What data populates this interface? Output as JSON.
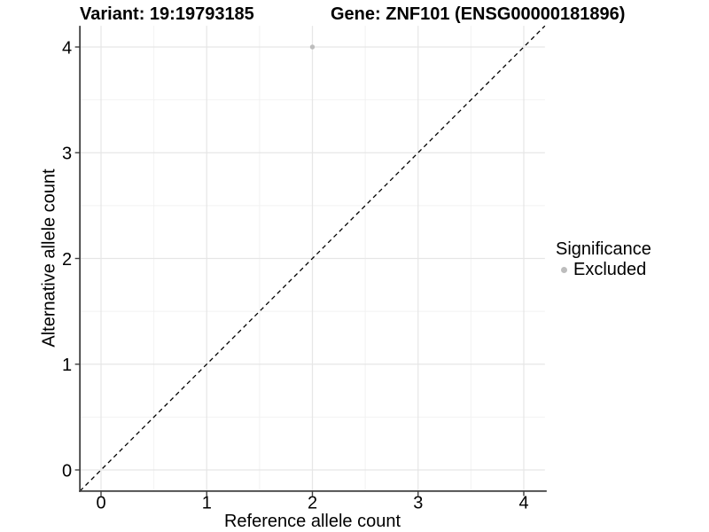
{
  "header": {
    "title_left": "Variant: 19:19793185",
    "title_right": "Gene: ZNF101 (ENSG00000181896)"
  },
  "chart_data": {
    "type": "scatter",
    "xlabel": "Reference allele count",
    "ylabel": "Alternative allele count",
    "xlim": [
      -0.2,
      4.2
    ],
    "ylim": [
      -0.2,
      4.2
    ],
    "xticks": [
      0,
      1,
      2,
      3,
      4
    ],
    "yticks": [
      0,
      1,
      2,
      3,
      4
    ],
    "minor_xticks": [
      0.5,
      1.5,
      2.5,
      3.5
    ],
    "minor_yticks": [
      0.5,
      1.5,
      2.5,
      3.5
    ],
    "grid": true,
    "points": [
      {
        "x": 2,
        "y": 4,
        "series": "Excluded"
      }
    ],
    "reference_line": {
      "slope": 1,
      "intercept": 0,
      "style": "dashed",
      "color": "#000000"
    },
    "legend": {
      "title": "Significance",
      "position": "right",
      "items": [
        {
          "label": "Excluded",
          "color": "#bdbdbd"
        }
      ]
    },
    "colors": {
      "background": "#ffffff",
      "point": "#bdbdbd",
      "grid_major": "#e6e6e6",
      "grid_minor": "#f2f2f2",
      "axis": "#404040",
      "text": "#000000"
    }
  }
}
